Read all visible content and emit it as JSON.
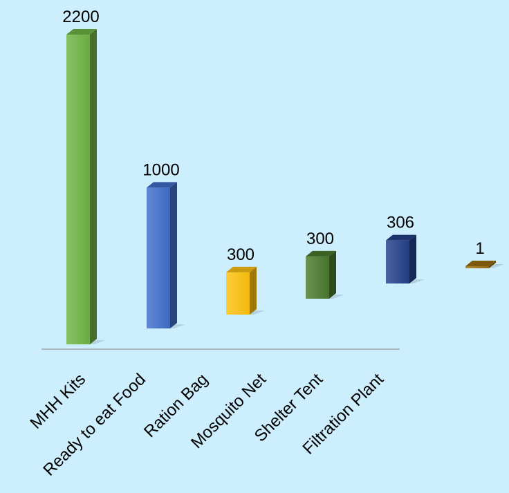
{
  "chart_data": {
    "type": "bar",
    "title": "",
    "xlabel": "",
    "ylabel": "",
    "categories": [
      "MHH Kits",
      "Ready to eat Food",
      "Ration Bag",
      "Mosquito Net",
      "Shelter Tent",
      "Filtration Plant"
    ],
    "values": [
      2200,
      1000,
      300,
      300,
      306,
      1
    ],
    "data_labels": [
      "2200",
      "1000",
      "300",
      "300",
      "306",
      "1"
    ],
    "grid": false,
    "legend": "none",
    "style": "3d-column-perspective",
    "colors": [
      "#6fb544",
      "#3f6fca",
      "#ffc20e",
      "#4a7a2c",
      "#23408a",
      "#9c6f12"
    ]
  }
}
